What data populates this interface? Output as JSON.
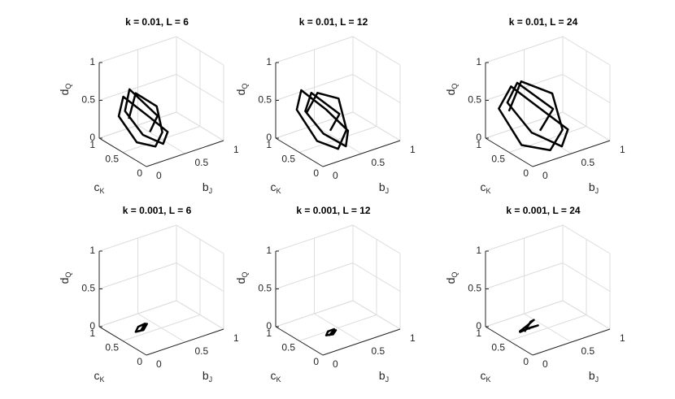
{
  "chart_data": [
    {
      "type": "line3d",
      "title": "k = 0.01, L = 6",
      "color": "#000000",
      "xlabel": [
        "b",
        "J"
      ],
      "ylabel": [
        "c",
        "K"
      ],
      "zlabel": [
        "d",
        "Q"
      ],
      "xlim": [
        0,
        1
      ],
      "ylim": [
        0,
        1
      ],
      "zlim": [
        0,
        1
      ],
      "xticks": [
        0,
        0.5,
        1
      ],
      "yticks": [
        0,
        0.5,
        1
      ],
      "zticks": [
        0,
        0.5,
        1
      ],
      "grid": true,
      "x": [
        0.2,
        0.35,
        0.5,
        0.45,
        0.3,
        0.15,
        0.1,
        0.25,
        0.45,
        0.55,
        0.4,
        0.2,
        0.12,
        0.3,
        0.48,
        0.35
      ],
      "y": [
        0.7,
        0.8,
        0.6,
        0.4,
        0.3,
        0.45,
        0.75,
        0.9,
        0.7,
        0.45,
        0.3,
        0.4,
        0.65,
        0.85,
        0.55,
        0.5
      ],
      "z": [
        0.3,
        0.55,
        0.4,
        0.15,
        0.05,
        0.1,
        0.35,
        0.5,
        0.25,
        0.1,
        0.05,
        0.2,
        0.45,
        0.6,
        0.3,
        0.15
      ]
    },
    {
      "type": "line3d",
      "title": "k = 0.01, L = 12",
      "color": "#000000",
      "xlabel": [
        "b",
        "J"
      ],
      "ylabel": [
        "c",
        "K"
      ],
      "zlabel": [
        "d",
        "Q"
      ],
      "xlim": [
        0,
        1
      ],
      "ylim": [
        0,
        1
      ],
      "zlim": [
        0,
        1
      ],
      "xticks": [
        0,
        0.5,
        1
      ],
      "yticks": [
        0,
        0.5,
        1
      ],
      "zticks": [
        0,
        0.5,
        1
      ],
      "grid": true,
      "x": [
        0.25,
        0.45,
        0.6,
        0.55,
        0.35,
        0.2,
        0.15,
        0.3,
        0.5,
        0.6,
        0.45,
        0.25,
        0.2,
        0.4,
        0.55,
        0.4
      ],
      "y": [
        0.75,
        0.85,
        0.65,
        0.4,
        0.25,
        0.45,
        0.8,
        0.95,
        0.75,
        0.45,
        0.25,
        0.4,
        0.7,
        0.9,
        0.55,
        0.5
      ],
      "z": [
        0.35,
        0.5,
        0.45,
        0.15,
        0.02,
        0.1,
        0.4,
        0.55,
        0.3,
        0.1,
        0.02,
        0.2,
        0.4,
        0.5,
        0.3,
        0.15
      ]
    },
    {
      "type": "line3d",
      "title": "k = 0.01, L = 24",
      "color": "#000000",
      "xlabel": [
        "b",
        "J"
      ],
      "ylabel": [
        "c",
        "K"
      ],
      "zlabel": [
        "d",
        "Q"
      ],
      "xlim": [
        0,
        1
      ],
      "ylim": [
        0,
        1
      ],
      "zlim": [
        0,
        1
      ],
      "xticks": [
        0,
        0.5,
        1
      ],
      "yticks": [
        0,
        0.5,
        1
      ],
      "zticks": [
        0,
        0.5,
        1
      ],
      "grid": true,
      "x": [
        0.15,
        0.4,
        0.65,
        0.6,
        0.35,
        0.1,
        0.05,
        0.3,
        0.55,
        0.7,
        0.5,
        0.2,
        0.1,
        0.35,
        0.6,
        0.4
      ],
      "y": [
        0.75,
        0.9,
        0.65,
        0.35,
        0.2,
        0.4,
        0.8,
        0.95,
        0.75,
        0.4,
        0.2,
        0.35,
        0.7,
        0.9,
        0.55,
        0.5
      ],
      "z": [
        0.4,
        0.65,
        0.5,
        0.15,
        0.02,
        0.1,
        0.45,
        0.6,
        0.3,
        0.1,
        0.02,
        0.25,
        0.55,
        0.65,
        0.35,
        0.15
      ]
    },
    {
      "type": "line3d",
      "title": "k = 0.001, L = 6",
      "color": "#000000",
      "xlabel": [
        "b",
        "J"
      ],
      "ylabel": [
        "c",
        "K"
      ],
      "zlabel": [
        "d",
        "Q"
      ],
      "xlim": [
        0,
        1
      ],
      "ylim": [
        0,
        1
      ],
      "zlim": [
        0,
        1
      ],
      "xticks": [
        0,
        0.5,
        1
      ],
      "yticks": [
        0,
        0.5,
        1
      ],
      "zticks": [
        0,
        0.5,
        1
      ],
      "grid": true,
      "x": [
        0.2,
        0.28,
        0.32,
        0.26,
        0.18,
        0.22,
        0.3,
        0.25
      ],
      "y": [
        0.45,
        0.5,
        0.55,
        0.6,
        0.52,
        0.42,
        0.48,
        0.5
      ],
      "z": [
        0.08,
        0.12,
        0.1,
        0.06,
        0.05,
        0.1,
        0.13,
        0.08
      ]
    },
    {
      "type": "line3d",
      "title": "k = 0.001, L = 12",
      "color": "#000000",
      "xlabel": [
        "b",
        "J"
      ],
      "ylabel": [
        "c",
        "K"
      ],
      "zlabel": [
        "d",
        "Q"
      ],
      "xlim": [
        0,
        1
      ],
      "ylim": [
        0,
        1
      ],
      "zlim": [
        0,
        1
      ],
      "xticks": [
        0,
        0.5,
        1
      ],
      "yticks": [
        0,
        0.5,
        1
      ],
      "zticks": [
        0,
        0.5,
        1
      ],
      "grid": true,
      "x": [
        0.3,
        0.38,
        0.42,
        0.36,
        0.3,
        0.34,
        0.4,
        0.35
      ],
      "y": [
        0.36,
        0.4,
        0.45,
        0.48,
        0.42,
        0.34,
        0.38,
        0.4
      ],
      "z": [
        0.02,
        0.04,
        0.03,
        0.01,
        0.0,
        0.03,
        0.05,
        0.02
      ]
    },
    {
      "type": "line3d",
      "title": "k = 0.001, L = 24",
      "color": "#000000",
      "xlabel": [
        "b",
        "J"
      ],
      "ylabel": [
        "c",
        "K"
      ],
      "zlabel": [
        "d",
        "Q"
      ],
      "xlim": [
        0,
        1
      ],
      "ylim": [
        0,
        1
      ],
      "zlim": [
        0,
        1
      ],
      "xticks": [
        0,
        0.5,
        1
      ],
      "yticks": [
        0,
        0.5,
        1
      ],
      "zticks": [
        0,
        0.5,
        1
      ],
      "grid": true,
      "x": [
        0.15,
        0.28,
        0.37,
        0.32,
        0.2,
        0.13,
        0.22,
        0.35,
        0.3,
        0.25
      ],
      "y": [
        0.42,
        0.5,
        0.58,
        0.64,
        0.6,
        0.48,
        0.4,
        0.46,
        0.55,
        0.5
      ],
      "z": [
        0.1,
        0.16,
        0.12,
        0.04,
        0.02,
        0.08,
        0.14,
        0.1,
        0.05,
        0.07
      ]
    }
  ]
}
